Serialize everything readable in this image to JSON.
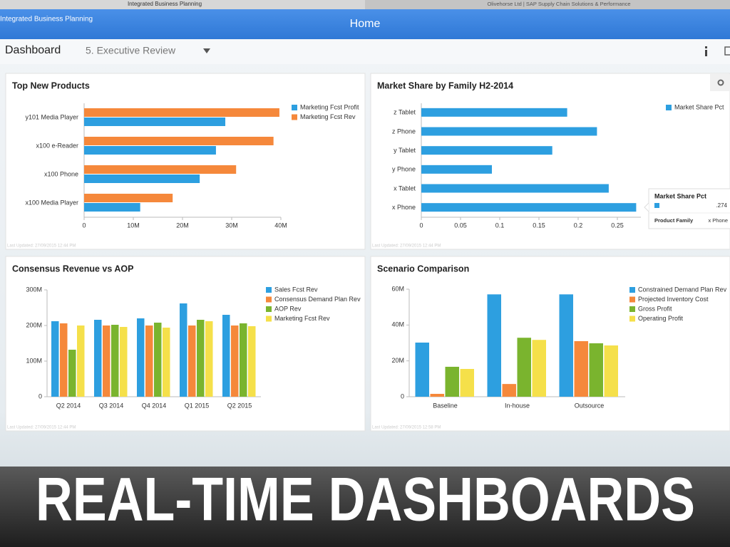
{
  "window": {
    "tabs": [
      "Integrated Business Planning",
      "Olivehorse Ltd | SAP Supply Chain Solutions & Performance"
    ]
  },
  "header": {
    "app": "Integrated Business Planning",
    "title": "Home"
  },
  "toolbar": {
    "title": "Dashboard",
    "selector": "5. Executive Review"
  },
  "chart_data": [
    {
      "type": "barh",
      "title": "Top New Products",
      "categories": [
        "y101 Media Player",
        "x100 e-Reader",
        "x100 Phone",
        "x100 Media Player"
      ],
      "series": [
        {
          "name": "Marketing Fcst Profit",
          "color": "#2d9fe0",
          "values": [
            28700000,
            26800000,
            23500000,
            11400000
          ]
        },
        {
          "name": "Marketing Fcst Rev",
          "color": "#f5883b",
          "values": [
            39700000,
            38500000,
            30900000,
            18000000
          ]
        }
      ],
      "xlim": [
        0,
        40000000
      ],
      "xticks": [
        0,
        {
          "value": 10000000,
          "label": "10M"
        },
        {
          "value": 20000000,
          "label": "20M"
        },
        {
          "value": 30000000,
          "label": "30M"
        },
        {
          "value": 40000000,
          "label": "40M"
        }
      ],
      "grid": false,
      "legend": "top-right",
      "footer": "Last Updated: 27/09/2015 12:44 PM"
    },
    {
      "type": "barh",
      "title": "Market Share by Family H2-2014",
      "categories": [
        "z Tablet",
        "z Phone",
        "y Tablet",
        "y Phone",
        "x Tablet",
        "x Phone"
      ],
      "series": [
        {
          "name": "Market Share Pct",
          "color": "#2d9fe0",
          "values": [
            0.186,
            0.224,
            0.167,
            0.09,
            0.239,
            0.274
          ]
        }
      ],
      "xlim": [
        0,
        0.28
      ],
      "xticks": [
        0,
        0.05,
        0.1,
        0.15,
        0.2,
        0.25
      ],
      "grid": false,
      "legend": "top-right",
      "footer": "Last Updated: 27/09/2015 12:44 PM",
      "tooltip": {
        "title": "Market Share Pct",
        "value": ".274",
        "category_label": "Product Family",
        "category": "x Phone"
      }
    },
    {
      "type": "bar",
      "title": "Consensus Revenue vs AOP",
      "categories": [
        "Q2 2014",
        "Q3 2014",
        "Q4 2014",
        "Q1 2015",
        "Q2 2015"
      ],
      "series": [
        {
          "name": "Sales Fcst Rev",
          "color": "#2d9fe0",
          "values": [
            212000000,
            216000000,
            220000000,
            262000000,
            230000000
          ]
        },
        {
          "name": "Consensus Demand Plan Rev",
          "color": "#f5883b",
          "values": [
            206000000,
            200000000,
            200000000,
            200000000,
            200000000
          ]
        },
        {
          "name": "AOP Rev",
          "color": "#7ab42e",
          "values": [
            132000000,
            202000000,
            208000000,
            216000000,
            206000000
          ]
        },
        {
          "name": "Marketing Fcst Rev",
          "color": "#f5e04a",
          "values": [
            200000000,
            196000000,
            194000000,
            212000000,
            198000000
          ]
        }
      ],
      "ylim": [
        0,
        300000000
      ],
      "yticks": [
        0,
        {
          "value": 100000000,
          "label": "100M"
        },
        {
          "value": 200000000,
          "label": "200M"
        },
        {
          "value": 300000000,
          "label": "300M"
        }
      ],
      "grid": false,
      "legend": "top-right",
      "footer": "Last Updated: 27/09/2015 12:44 PM"
    },
    {
      "type": "bar",
      "title": "Scenario Comparison",
      "categories": [
        "Baseline",
        "In-house",
        "Outsource"
      ],
      "series": [
        {
          "name": "Constrained Demand Plan Rev",
          "color": "#2d9fe0",
          "values": [
            30200000,
            57100000,
            57100000
          ]
        },
        {
          "name": "Projected Inventory Cost",
          "color": "#f5883b",
          "values": [
            1600000,
            7100000,
            31000000
          ]
        },
        {
          "name": "Gross Profit",
          "color": "#7ab42e",
          "values": [
            16700000,
            32900000,
            29800000
          ]
        },
        {
          "name": "Operating Profit",
          "color": "#f5e04a",
          "values": [
            15500000,
            31700000,
            28600000
          ]
        }
      ],
      "ylim": [
        0,
        60000000
      ],
      "yticks": [
        0,
        {
          "value": 20000000,
          "label": "20M"
        },
        {
          "value": 40000000,
          "label": "40M"
        },
        {
          "value": 60000000,
          "label": "60M"
        }
      ],
      "grid": false,
      "legend": "top-right",
      "footer": "Last Updated: 27/09/2015 12:58 PM"
    }
  ],
  "banner": "REAL-TIME DASHBOARDS"
}
